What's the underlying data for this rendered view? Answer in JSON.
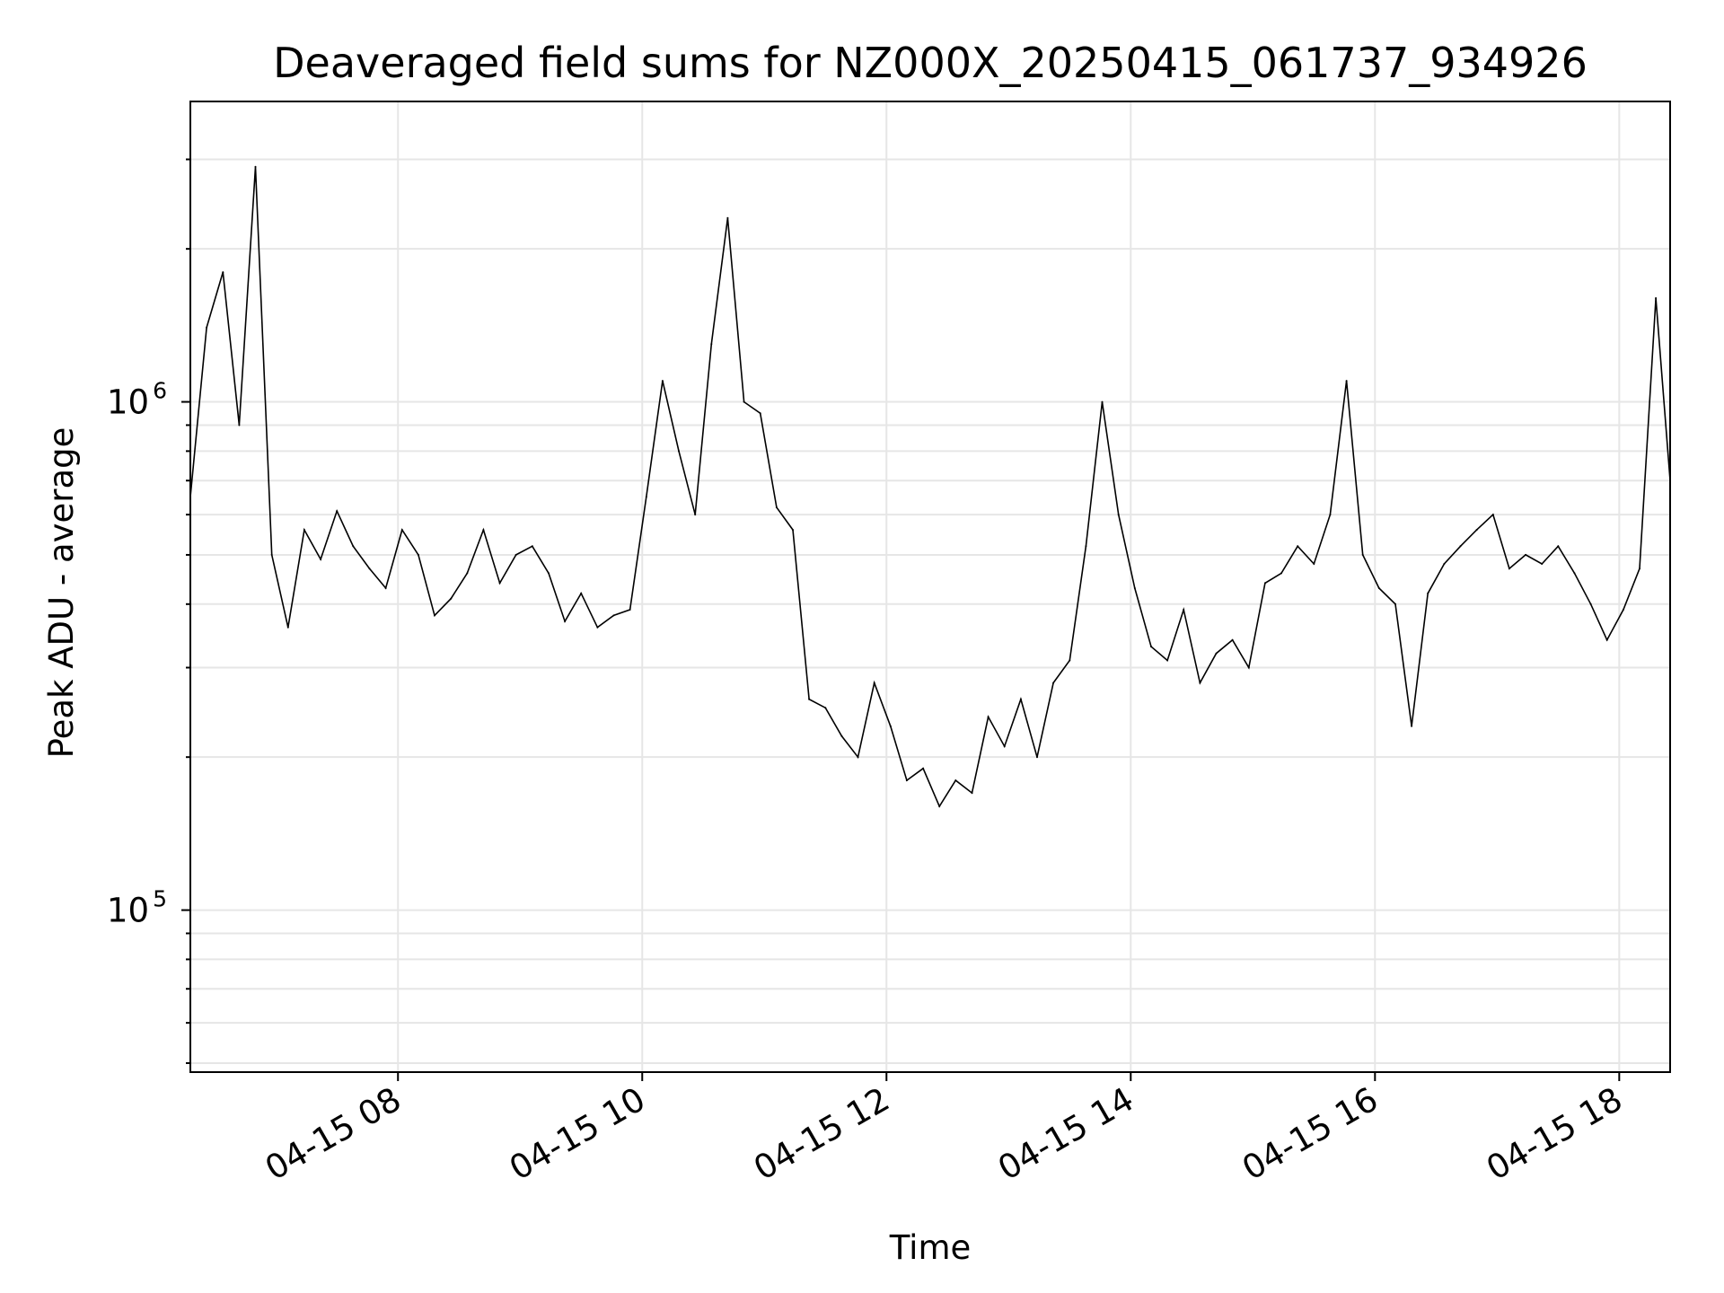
{
  "chart_data": {
    "type": "line",
    "title": "Deaveraged field sums for NZ000X_20250415_061737_934926",
    "xlabel": "Time",
    "ylabel": "Peak ADU - average",
    "y_scale": "log",
    "ylim": [
      48000,
      3900000
    ],
    "xlim": [
      "04-15 06:18",
      "04-15 18:25"
    ],
    "x_ticks": [
      "04-15 08",
      "04-15 10",
      "04-15 12",
      "04-15 14",
      "04-15 16",
      "04-15 18"
    ],
    "y_ticks": [
      {
        "value": 100000,
        "base": "10",
        "exp": "5"
      },
      {
        "value": 1000000,
        "base": "10",
        "exp": "6"
      }
    ],
    "grid": true,
    "line_color": "#000000",
    "grid_color": "#e6e6e6",
    "series": [
      {
        "x": [
          "06:18",
          "06:26",
          "06:34",
          "06:42",
          "06:50",
          "06:58",
          "07:06",
          "07:14",
          "07:22",
          "07:30",
          "07:38",
          "07:46",
          "07:54",
          "08:02",
          "08:10",
          "08:18",
          "08:26",
          "08:34",
          "08:42",
          "08:50",
          "08:58",
          "09:06",
          "09:14",
          "09:22",
          "09:30",
          "09:38",
          "09:46",
          "09:54",
          "10:02",
          "10:10",
          "10:18",
          "10:26",
          "10:34",
          "10:42",
          "10:50",
          "10:58",
          "11:06",
          "11:14",
          "11:22",
          "11:30",
          "11:38",
          "11:46",
          "11:54",
          "12:02",
          "12:10",
          "12:18",
          "12:26",
          "12:34",
          "12:42",
          "12:50",
          "12:58",
          "13:06",
          "13:14",
          "13:22",
          "13:30",
          "13:38",
          "13:46",
          "13:54",
          "14:02",
          "14:10",
          "14:18",
          "14:26",
          "14:34",
          "14:42",
          "14:50",
          "14:58",
          "15:06",
          "15:14",
          "15:22",
          "15:30",
          "15:38",
          "15:46",
          "15:54",
          "16:02",
          "16:10",
          "16:18",
          "16:26",
          "16:34",
          "16:42",
          "16:50",
          "16:58",
          "17:06",
          "17:14",
          "17:22",
          "17:30",
          "17:38",
          "17:46",
          "17:54",
          "18:02",
          "18:10",
          "18:18",
          "18:25"
        ],
        "y": [
          650000,
          1400000,
          1800000,
          900000,
          2900000,
          500000,
          360000,
          560000,
          490000,
          610000,
          520000,
          470000,
          430000,
          560000,
          500000,
          380000,
          410000,
          460000,
          560000,
          440000,
          500000,
          520000,
          460000,
          370000,
          420000,
          360000,
          380000,
          390000,
          650000,
          1100000,
          800000,
          600000,
          1300000,
          2300000,
          1000000,
          950000,
          620000,
          560000,
          260000,
          250000,
          220000,
          200000,
          280000,
          230000,
          180000,
          190000,
          160000,
          180000,
          170000,
          240000,
          210000,
          260000,
          200000,
          280000,
          310000,
          520000,
          1000000,
          600000,
          430000,
          330000,
          310000,
          390000,
          280000,
          320000,
          340000,
          300000,
          440000,
          460000,
          520000,
          480000,
          600000,
          1100000,
          500000,
          430000,
          400000,
          230000,
          420000,
          480000,
          520000,
          560000,
          600000,
          470000,
          500000,
          480000,
          520000,
          460000,
          400000,
          340000,
          390000,
          470000,
          1600000,
          700000
        ]
      }
    ]
  }
}
